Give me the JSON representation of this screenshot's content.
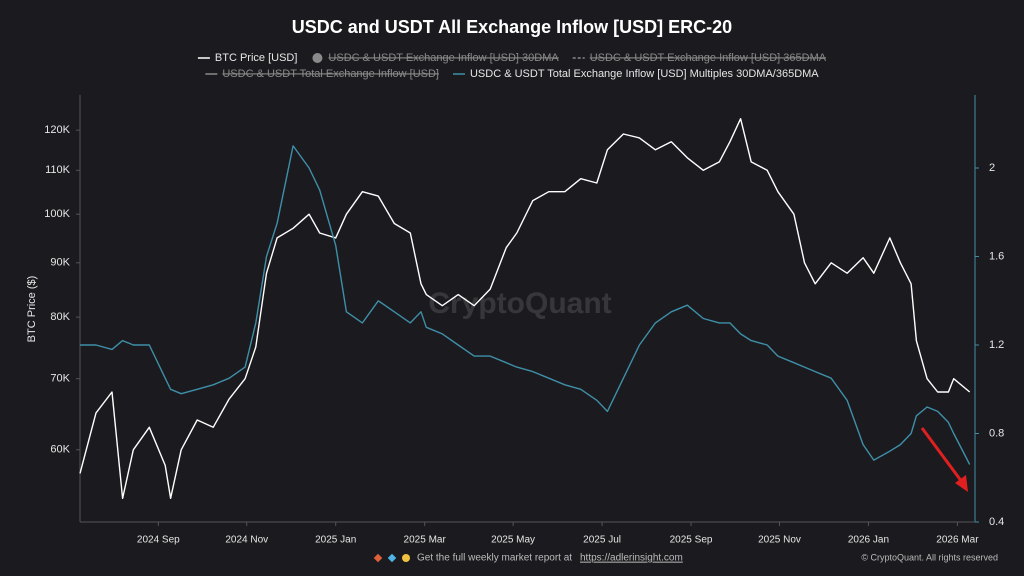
{
  "chart_data": {
    "type": "line",
    "title": "USDC and USDT All Exchange Inflow [USD] ERC-20",
    "y_label": "BTC Price ($)",
    "watermark": "CryptoQuant",
    "footer": {
      "text": "Get the full weekly market report at",
      "link": "https://adlerinsight.com",
      "copyright": "© CryptoQuant. All rights reserved"
    },
    "x": [
      2024.52,
      2024.55,
      2024.58,
      2024.6,
      2024.62,
      2024.65,
      2024.68,
      2024.69,
      2024.71,
      2024.74,
      2024.77,
      2024.8,
      2024.83,
      2024.85,
      2024.87,
      2024.89,
      2024.92,
      2024.95,
      2024.97,
      2025.0,
      2025.02,
      2025.05,
      2025.08,
      2025.11,
      2025.14,
      2025.16,
      2025.17,
      2025.2,
      2025.23,
      2025.26,
      2025.29,
      2025.32,
      2025.34,
      2025.37,
      2025.4,
      2025.43,
      2025.46,
      2025.49,
      2025.51,
      2025.54,
      2025.57,
      2025.6,
      2025.63,
      2025.66,
      2025.69,
      2025.72,
      2025.74,
      2025.76,
      2025.78,
      2025.81,
      2025.83,
      2025.86,
      2025.88,
      2025.9,
      2025.93,
      2025.96,
      2025.99,
      2026.01,
      2026.04,
      2026.06,
      2026.08,
      2026.09,
      2026.11,
      2026.13,
      2026.15,
      2026.16,
      2026.19
    ],
    "series": [
      {
        "name": "BTC Price [USD]",
        "color": "#ffffff",
        "axis": "y",
        "values": [
          57000,
          65000,
          68000,
          54000,
          60000,
          63000,
          58000,
          54000,
          60000,
          64000,
          63000,
          67000,
          70000,
          75000,
          88000,
          95000,
          97000,
          100000,
          96000,
          95000,
          100000,
          105000,
          104000,
          98000,
          96000,
          86000,
          84000,
          82000,
          84000,
          82000,
          85000,
          93000,
          96000,
          103000,
          105000,
          105000,
          108000,
          107000,
          115000,
          119000,
          118000,
          115000,
          117000,
          113000,
          110000,
          112000,
          117000,
          123000,
          112000,
          110000,
          105000,
          100000,
          90000,
          86000,
          90000,
          88000,
          91000,
          88000,
          95000,
          90000,
          86000,
          76000,
          70000,
          68000,
          68000,
          70000,
          68000
        ]
      },
      {
        "name": "USDC & USDT Exchange Inflow [USD] 30DMA",
        "color": "#8a8a8a",
        "hidden": true,
        "marker": "circle"
      },
      {
        "name": "USDC & USDT Exchange Inflow [USD] 365DMA",
        "color": "#8a8a8a",
        "hidden": true,
        "dash": true
      },
      {
        "name": "USDC & USDT Total Exchange Inflow [USD]",
        "color": "#8a8a8a",
        "hidden": true
      },
      {
        "name": "USDC & USDT Total Exchange Inflow [USD] Multiples 30DMA/365DMA",
        "color": "#3f8fa9",
        "axis": "y2",
        "values": [
          1.2,
          1.2,
          1.18,
          1.22,
          1.2,
          1.2,
          1.05,
          1.0,
          0.98,
          1.0,
          1.02,
          1.05,
          1.1,
          1.3,
          1.6,
          1.75,
          2.1,
          2.0,
          1.9,
          1.65,
          1.35,
          1.3,
          1.4,
          1.35,
          1.3,
          1.35,
          1.28,
          1.25,
          1.2,
          1.15,
          1.15,
          1.12,
          1.1,
          1.08,
          1.05,
          1.02,
          1.0,
          0.95,
          0.9,
          1.05,
          1.2,
          1.3,
          1.35,
          1.38,
          1.32,
          1.3,
          1.3,
          1.25,
          1.22,
          1.2,
          1.15,
          1.12,
          1.1,
          1.08,
          1.05,
          0.95,
          0.75,
          0.68,
          0.72,
          0.75,
          0.8,
          0.88,
          0.92,
          0.9,
          0.85,
          0.8,
          0.66
        ]
      }
    ],
    "xlim": [
      2024.52,
      2026.2
    ],
    "xticks": [
      {
        "value": 2024.667,
        "label": "2024 Sep"
      },
      {
        "value": 2024.833,
        "label": "2024 Nov"
      },
      {
        "value": 2025.0,
        "label": "2025 Jan"
      },
      {
        "value": 2025.167,
        "label": "2025 Mar"
      },
      {
        "value": 2025.333,
        "label": "2025 May"
      },
      {
        "value": 2025.5,
        "label": "2025 Jul"
      },
      {
        "value": 2025.667,
        "label": "2025 Sep"
      },
      {
        "value": 2025.833,
        "label": "2025 Nov"
      },
      {
        "value": 2026.0,
        "label": "2026 Jan"
      },
      {
        "value": 2026.167,
        "label": "2026 Mar"
      }
    ],
    "ylim": [
      51300,
      129500
    ],
    "ylog": true,
    "yticks": [
      {
        "value": 60000,
        "label": "60K"
      },
      {
        "value": 70000,
        "label": "70K"
      },
      {
        "value": 80000,
        "label": "80K"
      },
      {
        "value": 90000,
        "label": "90K"
      },
      {
        "value": 100000,
        "label": "100K"
      },
      {
        "value": 110000,
        "label": "110K"
      },
      {
        "value": 120000,
        "label": "120K"
      }
    ],
    "y2lim": [
      0.4,
      2.33
    ],
    "y2ticks": [
      0.4,
      0.8,
      1.2,
      1.6,
      2
    ],
    "grid": false
  }
}
